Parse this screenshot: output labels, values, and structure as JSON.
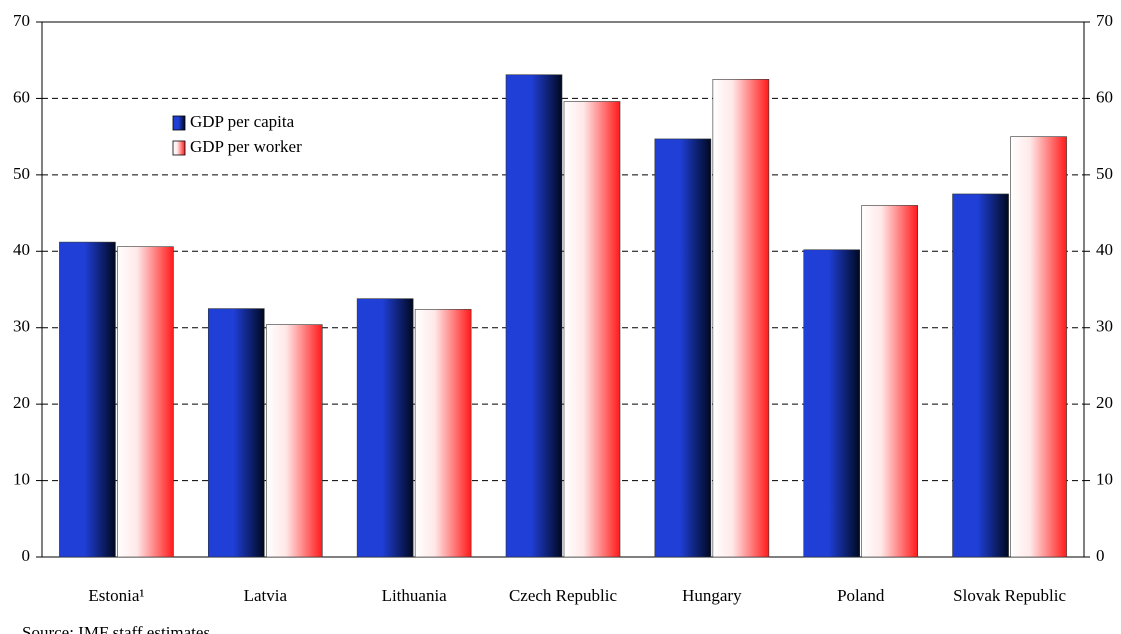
{
  "chart_data": {
    "type": "bar",
    "categories": [
      "Estonia¹",
      "Latvia",
      "Lithuania",
      "Czech Republic",
      "Hungary",
      "Poland",
      "Slovak Republic"
    ],
    "series": [
      {
        "name": "GDP per capita",
        "color": "#1f3fd6",
        "values": [
          41.2,
          32.5,
          33.8,
          63.1,
          54.7,
          40.2,
          47.5
        ]
      },
      {
        "name": "GDP per worker",
        "color": "#ff1a1a",
        "values": [
          40.6,
          30.4,
          32.4,
          59.6,
          62.5,
          46.0,
          55.0
        ]
      }
    ],
    "ylim": [
      0,
      70
    ],
    "yticks": [
      0,
      10,
      20,
      30,
      40,
      50,
      60,
      70
    ],
    "grid": true,
    "note": "Source: IMF staff estimates."
  }
}
